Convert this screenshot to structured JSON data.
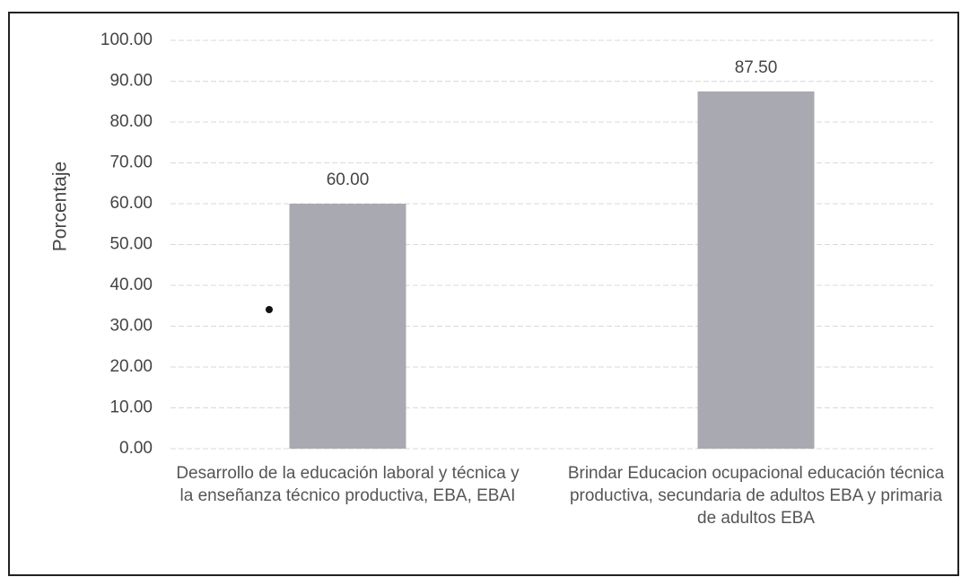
{
  "chart_data": {
    "type": "bar",
    "y_label": "Porcentaje",
    "categories": [
      "Desarrollo de la educación laboral y técnica y la enseñanza técnico productiva, EBA, EBAI",
      "Brindar Educacion ocupacional educación técnica productiva, secundaria de adultos EBA y primaria de adultos EBA"
    ],
    "values": [
      60,
      87.5
    ],
    "value_labels": [
      "60.00",
      "87.50"
    ],
    "color": "#a9a9b1",
    "ylim": [
      0,
      100
    ],
    "yticks": [
      {
        "value": 0,
        "label": "0.00"
      },
      {
        "value": 10,
        "label": "10.00"
      },
      {
        "value": 20,
        "label": "20.00"
      },
      {
        "value": 30,
        "label": "30.00"
      },
      {
        "value": 40,
        "label": "40.00"
      },
      {
        "value": 50,
        "label": "50.00"
      },
      {
        "value": 60,
        "label": "60.00"
      },
      {
        "value": 70,
        "label": "70.00"
      },
      {
        "value": 80,
        "label": "80.00"
      },
      {
        "value": 90,
        "label": "90.00"
      },
      {
        "value": 100,
        "label": "100.00"
      }
    ],
    "grid": true
  }
}
